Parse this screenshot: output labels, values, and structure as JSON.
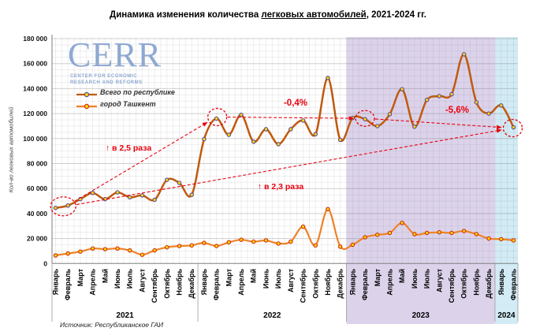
{
  "title": {
    "pre": "Динамика изменения количества ",
    "underlined": "легковых автомобилей",
    "post": ", 2021-2024 гг."
  },
  "logo": {
    "name": "CERR",
    "subtitle_line1": "CENTER FOR ECONOMIC",
    "subtitle_line2": "RESEARCH AND REFORMS",
    "color": "#8ea8d2"
  },
  "y_axis_title": "Кол-во легковых автомобилей",
  "source": "Источник: Республиканское ГАИ",
  "annotation_color": "#e8000d",
  "marker_fill": "#ffd400",
  "chart_data": {
    "type": "line",
    "title": "Динамика изменения количества легковых автомобилей, 2021-2024 гг.",
    "ylabel": "Кол-во легковых автомобилей",
    "ylim": [
      0,
      180000
    ],
    "y_tick_step": 20000,
    "y_tick_labels": [
      "0",
      "20 000",
      "40 000",
      "60 000",
      "80 000",
      "100 000",
      "120 000",
      "140 000",
      "160 000",
      "180 000"
    ],
    "grid": true,
    "legend_position": "top-left",
    "months": [
      "Январь",
      "Февраль",
      "Март",
      "Апрель",
      "Май",
      "Июнь",
      "Июль",
      "Август",
      "Сентябрь",
      "Октябрь",
      "Ноябрь",
      "Декабрь"
    ],
    "years": [
      {
        "label": "2021",
        "months": 12
      },
      {
        "label": "2022",
        "months": 12
      },
      {
        "label": "2023",
        "months": 12
      },
      {
        "label": "2024",
        "months": 2
      }
    ],
    "series": [
      {
        "name": "Всего по республике",
        "color": "#c05a0e",
        "marker_stroke": "#5b4a9e",
        "values": [
          44500,
          46400,
          51500,
          56500,
          51500,
          57000,
          53000,
          54500,
          51000,
          67000,
          64500,
          55000,
          99500,
          116000,
          103000,
          119000,
          97500,
          107500,
          95500,
          107500,
          114500,
          103500,
          148500,
          99000,
          116500,
          115500,
          110000,
          119500,
          139500,
          109500,
          131000,
          134000,
          135500,
          167500,
          129000,
          120000,
          126500,
          109000
        ]
      },
      {
        "name": "город Ташкент",
        "color": "#ef8228",
        "marker_stroke": "#cf2b12",
        "values": [
          6500,
          8000,
          9500,
          12000,
          11500,
          12000,
          10500,
          7000,
          10500,
          13000,
          14000,
          14500,
          16500,
          14000,
          17000,
          19000,
          17500,
          18500,
          16000,
          17500,
          29500,
          14500,
          43500,
          13500,
          15000,
          21000,
          23000,
          24500,
          32500,
          23500,
          24500,
          25000,
          24500,
          26000,
          23500,
          20000,
          19500,
          18500
        ]
      }
    ],
    "highlight_bands": [
      {
        "year": "2023",
        "color": "#dcd3eb"
      },
      {
        "year": "2024",
        "color": "#d2ebf5"
      }
    ],
    "highlight_circles": [
      "2021-02",
      "2022-02",
      "2023-02",
      "2024-02"
    ],
    "annotations": [
      {
        "id": "ratio-25",
        "text": "↑ в 2,5 раза",
        "from": "2021-02",
        "to": "2022-02"
      },
      {
        "id": "ratio-23",
        "text": "↑ в 2,3 раза",
        "from": "2021-02",
        "to": "2024-02"
      },
      {
        "id": "pct-04",
        "text": "-0,4%",
        "from": "2022-02",
        "to": "2023-02"
      },
      {
        "id": "pct-56",
        "text": "-5,6%",
        "from": "2023-02",
        "to": "2024-02"
      }
    ]
  }
}
